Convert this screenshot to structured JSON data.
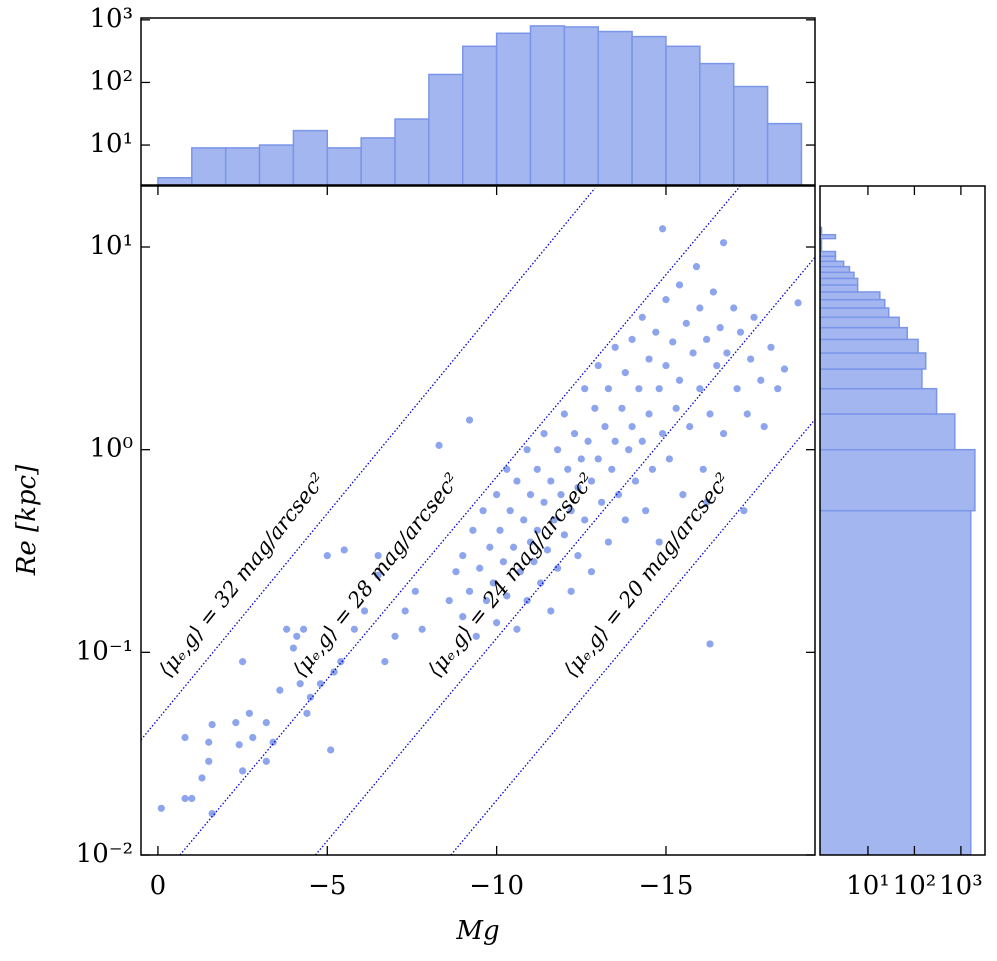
{
  "chart_data": [
    {
      "type": "histogram",
      "orientation": "vertical",
      "color": "#a3b6f0",
      "edgecolor": "#7b96e8",
      "log_y": true,
      "bins": [
        0,
        -1,
        -2,
        -3,
        -4,
        -5,
        -6,
        -7,
        -8,
        -9,
        -10,
        -11,
        -12,
        -13,
        -14,
        -15,
        -16,
        -17,
        -18,
        -19
      ],
      "values": [
        3,
        9,
        9,
        10,
        17,
        9,
        13,
        26,
        134,
        378,
        610,
        800,
        770,
        650,
        540,
        378,
        200,
        86,
        22
      ],
      "xlim": [
        0.5,
        -19.4
      ],
      "ylim": [
        2.3,
        1070
      ],
      "yticks": [
        {
          "value": 10,
          "label": "10¹"
        },
        {
          "value": 100,
          "label": "10²"
        },
        {
          "value": 1000,
          "label": "10³"
        }
      ]
    },
    {
      "type": "scatter",
      "color": "#4169e1",
      "log_y": true,
      "xlabel": "Mg",
      "ylabel": "Re [kpc]",
      "x": [
        -0.1,
        -1.6,
        -0.8,
        -1.0,
        -1.3,
        -1.5,
        -1.6,
        -0.8,
        -1.5,
        -2.3,
        -2.5,
        -2.7,
        -2.4,
        -2.8,
        -2.5,
        -3.2,
        -3.2,
        -3.6,
        -3.4,
        -3.8,
        -4.1,
        -4.0,
        -4.3,
        -4.5,
        -4.4,
        -4.2,
        -4.8,
        -5.2,
        -5.4,
        -5.1,
        -5.0,
        -5.5,
        -5.8,
        -6.1,
        -6.5,
        -6.5,
        -7.0,
        -6.7,
        -7.3,
        -7.6,
        -7.8,
        -8.3,
        -9.2,
        -16.3,
        -14.9,
        -16.7,
        -18.9,
        -8.6,
        -8.8,
        -9.0,
        -9.0,
        -9.2,
        -9.3,
        -9.4,
        -9.5,
        -9.6,
        -9.7,
        -9.8,
        -9.9,
        -10.0,
        -10.0,
        -10.1,
        -10.2,
        -10.3,
        -10.3,
        -10.4,
        -10.5,
        -10.6,
        -10.6,
        -10.7,
        -10.8,
        -10.9,
        -10.9,
        -11.0,
        -11.0,
        -11.1,
        -11.2,
        -11.2,
        -11.3,
        -11.4,
        -11.4,
        -11.5,
        -11.6,
        -11.6,
        -11.7,
        -11.8,
        -11.8,
        -11.9,
        -12.0,
        -12.0,
        -12.1,
        -12.2,
        -12.2,
        -12.3,
        -12.4,
        -12.4,
        -12.5,
        -12.6,
        -12.6,
        -12.7,
        -12.8,
        -12.8,
        -12.9,
        -13.0,
        -13.0,
        -13.1,
        -13.2,
        -13.3,
        -13.3,
        -13.4,
        -13.5,
        -13.5,
        -13.6,
        -13.7,
        -13.8,
        -13.8,
        -13.9,
        -14.0,
        -14.0,
        -14.1,
        -14.2,
        -14.3,
        -14.3,
        -14.4,
        -14.5,
        -14.5,
        -14.6,
        -14.7,
        -14.8,
        -14.8,
        -14.9,
        -15.0,
        -15.0,
        -15.1,
        -15.2,
        -15.3,
        -15.4,
        -15.4,
        -15.5,
        -15.6,
        -15.7,
        -15.8,
        -15.9,
        -16.0,
        -16.0,
        -16.1,
        -16.2,
        -16.3,
        -16.4,
        -16.5,
        -16.6,
        -16.7,
        -16.8,
        -17.0,
        -17.1,
        -17.2,
        -17.4,
        -17.5,
        -17.6,
        -17.8,
        -17.9,
        -18.1,
        -18.3,
        -18.5,
        -16.2,
        -17.3
      ],
      "values": [
        0.017,
        0.016,
        0.019,
        0.019,
        0.024,
        0.029,
        0.044,
        0.038,
        0.036,
        0.045,
        0.09,
        0.05,
        0.035,
        0.038,
        0.026,
        0.029,
        0.045,
        0.065,
        0.036,
        0.13,
        0.12,
        0.105,
        0.13,
        0.06,
        0.05,
        0.07,
        0.07,
        0.08,
        0.09,
        0.033,
        0.3,
        0.32,
        0.13,
        0.16,
        0.24,
        0.3,
        0.12,
        0.09,
        0.16,
        0.2,
        0.13,
        1.05,
        1.4,
        0.11,
        12.3,
        10.5,
        5.3,
        0.18,
        0.25,
        0.15,
        0.3,
        0.2,
        0.4,
        0.12,
        0.26,
        0.5,
        0.18,
        0.33,
        0.22,
        0.6,
        0.14,
        0.4,
        0.28,
        0.8,
        0.19,
        0.5,
        0.33,
        0.13,
        0.7,
        0.25,
        0.45,
        1.0,
        0.18,
        0.35,
        0.6,
        0.28,
        0.8,
        0.4,
        0.22,
        0.55,
        1.2,
        0.32,
        0.7,
        0.16,
        0.45,
        1.0,
        0.26,
        0.6,
        1.5,
        0.38,
        0.8,
        0.5,
        0.2,
        1.2,
        0.65,
        0.3,
        0.9,
        2.0,
        0.45,
        1.1,
        0.7,
        0.25,
        1.6,
        0.9,
        2.6,
        0.55,
        1.3,
        0.35,
        2.0,
        0.8,
        1.1,
        3.2,
        0.6,
        1.6,
        2.4,
        0.45,
        1.0,
        3.5,
        1.3,
        0.7,
        2.0,
        4.5,
        1.1,
        0.5,
        2.8,
        1.5,
        0.8,
        3.8,
        2.0,
        0.35,
        1.2,
        5.5,
        2.6,
        0.9,
        3.4,
        1.6,
        6.5,
        2.2,
        0.6,
        4.2,
        1.3,
        3.0,
        8.0,
        2.0,
        5.0,
        0.8,
        3.5,
        1.5,
        6.0,
        2.6,
        4.0,
        1.2,
        3.0,
        5.0,
        2.0,
        3.8,
        1.5,
        2.8,
        4.5,
        2.2,
        1.3,
        3.2,
        2.0,
        2.5,
        0.55,
        0.5
      ],
      "xlim": [
        0.5,
        -19.4
      ],
      "ylim": [
        0.01,
        20
      ],
      "xticks": [
        0,
        {
          "value": -5,
          "label": "−5"
        },
        {
          "value": -10,
          "label": "−10"
        },
        {
          "value": -15,
          "label": "−15"
        }
      ],
      "yticks": [
        {
          "value": 0.01,
          "label": "10⁻²"
        },
        {
          "value": 0.1,
          "label": "10⁻¹"
        },
        {
          "value": 1,
          "label": "10⁰"
        },
        {
          "value": 10,
          "label": "10¹"
        }
      ],
      "reference_lines": [
        {
          "label": "⟨μₑ,g⟩ = 32 mag/arcsec²",
          "color": "#0000cd",
          "x": [
            0.5,
            -12.9
          ],
          "values": [
            0.037,
            19.5
          ]
        },
        {
          "label": "⟨μₑ,g⟩ = 28 mag/arcsec²",
          "color": "#0000cd",
          "x": [
            -0.65,
            -17.3
          ],
          "values": [
            0.01,
            21
          ]
        },
        {
          "label": "⟨μₑ,g⟩ = 24 mag/arcsec²",
          "color": "#0000cd",
          "x": [
            -4.65,
            -19.4
          ],
          "values": [
            0.01,
            8.9
          ]
        },
        {
          "label": "⟨μₑ,g⟩ = 20 mag/arcsec²",
          "color": "#0000cd",
          "x": [
            -8.65,
            -19.4
          ],
          "values": [
            0.01,
            1.41
          ]
        }
      ]
    },
    {
      "type": "histogram",
      "orientation": "horizontal",
      "color": "#a3b6f0",
      "edgecolor": "#7b96e8",
      "log_x": true,
      "log_y": true,
      "bins": [
        0,
        0.5,
        1,
        1.5,
        2,
        2.5,
        3,
        3.5,
        4,
        4.5,
        5,
        5.5,
        6,
        6.5,
        7,
        7.5,
        8,
        8.5,
        9,
        9.5,
        10,
        10.5,
        11,
        11.5,
        12,
        12.5
      ],
      "values": [
        1630,
        2000,
        740,
        300,
        145,
        175,
        120,
        70,
        47,
        28,
        23,
        18,
        6,
        6,
        5,
        4,
        3,
        2,
        2,
        1,
        1,
        1,
        2,
        1,
        1
      ],
      "xlim": [
        0.93,
        3300
      ],
      "ylim": [
        0.01,
        20
      ],
      "xticks": [
        {
          "value": 10,
          "label": "10¹"
        },
        {
          "value": 100,
          "label": "10²"
        },
        {
          "value": 1000,
          "label": "10³"
        }
      ]
    }
  ]
}
